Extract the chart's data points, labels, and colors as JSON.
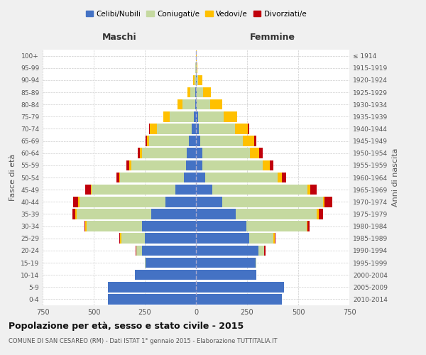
{
  "age_groups": [
    "0-4",
    "5-9",
    "10-14",
    "15-19",
    "20-24",
    "25-29",
    "30-34",
    "35-39",
    "40-44",
    "45-49",
    "50-54",
    "55-59",
    "60-64",
    "65-69",
    "70-74",
    "75-79",
    "80-84",
    "85-89",
    "90-94",
    "95-99",
    "100+"
  ],
  "birth_years": [
    "2010-2014",
    "2005-2009",
    "2000-2004",
    "1995-1999",
    "1990-1994",
    "1985-1989",
    "1980-1984",
    "1975-1979",
    "1970-1974",
    "1965-1969",
    "1960-1964",
    "1955-1959",
    "1950-1954",
    "1945-1949",
    "1940-1944",
    "1935-1939",
    "1930-1934",
    "1925-1929",
    "1920-1924",
    "1915-1919",
    "≤ 1914"
  ],
  "male": {
    "celibi": [
      430,
      430,
      300,
      245,
      265,
      250,
      265,
      220,
      150,
      100,
      60,
      50,
      45,
      35,
      20,
      10,
      5,
      2,
      0,
      0,
      0
    ],
    "coniugati": [
      0,
      0,
      0,
      5,
      25,
      115,
      270,
      365,
      420,
      410,
      310,
      265,
      220,
      195,
      170,
      120,
      60,
      25,
      8,
      2,
      0
    ],
    "vedovi": [
      0,
      0,
      0,
      0,
      0,
      5,
      5,
      5,
      5,
      5,
      5,
      10,
      10,
      10,
      35,
      30,
      25,
      15,
      5,
      2,
      0
    ],
    "divorziati": [
      0,
      0,
      0,
      0,
      5,
      5,
      5,
      15,
      25,
      25,
      15,
      15,
      10,
      5,
      5,
      0,
      0,
      0,
      0,
      0,
      0
    ]
  },
  "female": {
    "nubili": [
      420,
      430,
      295,
      290,
      305,
      260,
      245,
      195,
      130,
      80,
      45,
      30,
      30,
      20,
      15,
      10,
      5,
      3,
      2,
      0,
      0
    ],
    "coniugate": [
      0,
      0,
      0,
      5,
      30,
      120,
      295,
      395,
      490,
      465,
      355,
      295,
      235,
      210,
      175,
      125,
      65,
      30,
      10,
      2,
      0
    ],
    "vedove": [
      0,
      0,
      0,
      0,
      0,
      5,
      5,
      10,
      10,
      15,
      20,
      35,
      45,
      55,
      65,
      65,
      60,
      40,
      20,
      5,
      2
    ],
    "divorziate": [
      0,
      0,
      0,
      0,
      5,
      5,
      10,
      20,
      35,
      30,
      20,
      20,
      15,
      10,
      5,
      0,
      0,
      0,
      0,
      0,
      0
    ]
  },
  "colors": {
    "celibi": "#4472c4",
    "coniugati": "#c5d9a0",
    "vedovi": "#ffc000",
    "divorziati": "#c0000b"
  },
  "xlim": 750,
  "title": "Popolazione per età, sesso e stato civile - 2015",
  "subtitle": "COMUNE DI SAN CESAREO (RM) - Dati ISTAT 1° gennaio 2015 - Elaborazione TUTTITALIA.IT",
  "ylabel_left": "Fasce di età",
  "ylabel_right": "Anni di nascita",
  "xlabel_left": "Maschi",
  "xlabel_right": "Femmine",
  "legend_labels": [
    "Celibi/Nubili",
    "Coniugati/e",
    "Vedovi/e",
    "Divorziati/e"
  ],
  "bg_color": "#f0f0f0",
  "plot_bg_color": "#ffffff"
}
